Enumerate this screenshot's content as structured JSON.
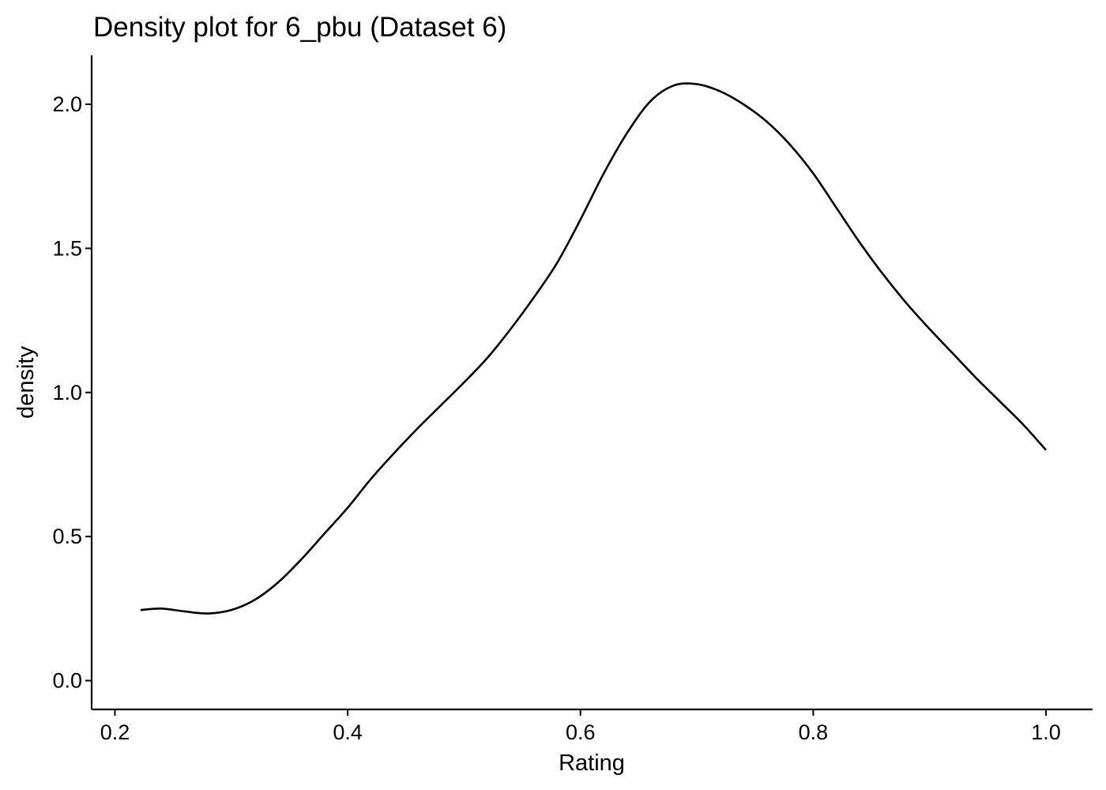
{
  "chart_data": {
    "type": "line",
    "title": "Density plot for 6_pbu (Dataset 6)",
    "xlabel": "Rating",
    "ylabel": "density",
    "xlim": [
      0.18,
      1.04
    ],
    "ylim": [
      -0.1,
      2.17
    ],
    "xticks": [
      0.2,
      0.4,
      0.6,
      0.8,
      1.0
    ],
    "xtick_labels": [
      "0.2",
      "0.4",
      "0.6",
      "0.8",
      "1.0"
    ],
    "yticks": [
      0.0,
      0.5,
      1.0,
      1.5,
      2.0
    ],
    "ytick_labels": [
      "0.0",
      "0.5",
      "1.0",
      "1.5",
      "2.0"
    ],
    "grid": false,
    "legend": "none",
    "line_color": "#000000",
    "series": [
      {
        "x": [
          0.222,
          0.24,
          0.26,
          0.28,
          0.3,
          0.32,
          0.34,
          0.36,
          0.38,
          0.4,
          0.42,
          0.44,
          0.46,
          0.48,
          0.5,
          0.52,
          0.54,
          0.56,
          0.58,
          0.6,
          0.62,
          0.64,
          0.66,
          0.68,
          0.7,
          0.72,
          0.74,
          0.76,
          0.78,
          0.8,
          0.82,
          0.84,
          0.86,
          0.88,
          0.9,
          0.92,
          0.94,
          0.96,
          0.98,
          1.0
        ],
        "y": [
          0.245,
          0.25,
          0.24,
          0.233,
          0.245,
          0.28,
          0.34,
          0.42,
          0.51,
          0.6,
          0.7,
          0.79,
          0.875,
          0.955,
          1.035,
          1.12,
          1.22,
          1.33,
          1.45,
          1.6,
          1.76,
          1.9,
          2.01,
          2.065,
          2.07,
          2.045,
          2.0,
          1.94,
          1.86,
          1.76,
          1.64,
          1.52,
          1.41,
          1.31,
          1.22,
          1.135,
          1.05,
          0.97,
          0.89,
          0.8
        ]
      }
    ]
  }
}
